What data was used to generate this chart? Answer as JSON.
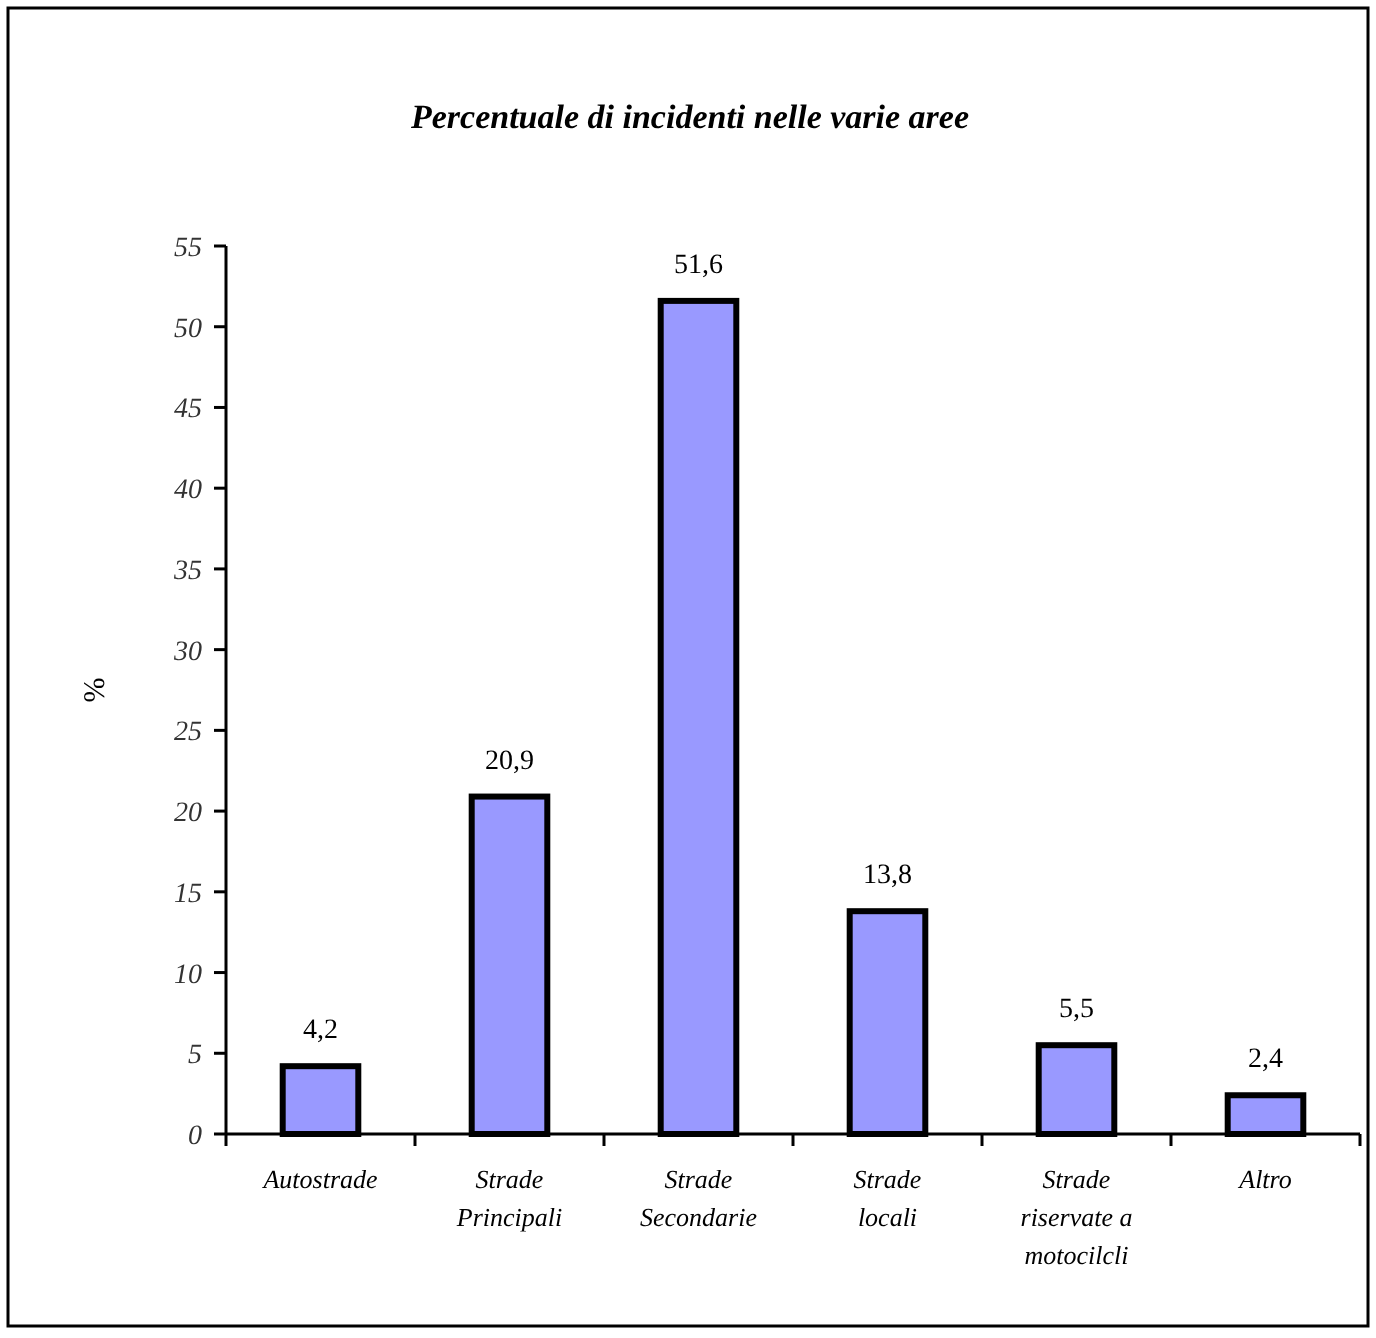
{
  "chart_data": {
    "type": "bar",
    "title": "Percentuale di incidenti nelle varie aree",
    "ylabel": "%",
    "categories": [
      "Autostrade",
      "Strade Principali",
      "Strade Secondarie",
      "Strade locali",
      "Strade riservate a motocilcli",
      "Altro"
    ],
    "values": [
      4.2,
      20.9,
      51.6,
      13.8,
      5.5,
      2.4
    ],
    "value_labels": [
      "4,2",
      "20,9",
      "51,6",
      "13,8",
      "5,5",
      "2,4"
    ],
    "color": "#9999ff",
    "ylim": [
      0,
      55
    ],
    "yticks": [
      0,
      5,
      10,
      15,
      20,
      25,
      30,
      35,
      40,
      45,
      50,
      55
    ],
    "grid": false
  }
}
